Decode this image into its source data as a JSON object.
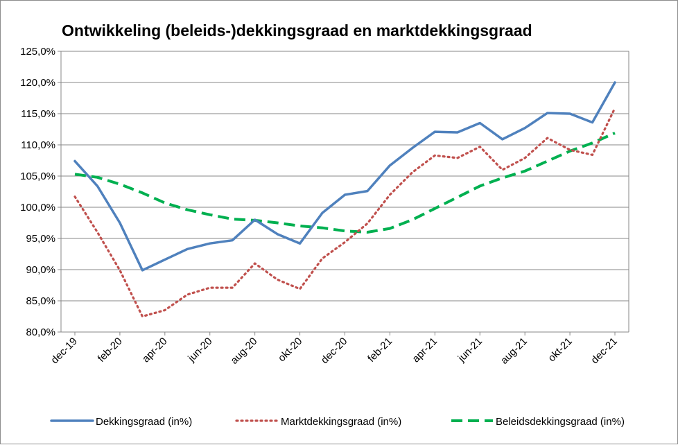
{
  "chart_data": {
    "type": "line",
    "title": "Ontwikkeling (beleids-)dekkingsgraad en marktdekkingsgraad",
    "xlabel": "",
    "ylabel": "",
    "x": [
      "dec-19",
      "jan-20",
      "feb-20",
      "mrt-20",
      "apr-20",
      "mei-20",
      "jun-20",
      "jul-20",
      "aug-20",
      "sep-20",
      "okt-20",
      "nov-20",
      "dec-20",
      "jan-21",
      "feb-21",
      "mrt-21",
      "apr-21",
      "mei-21",
      "jun-21",
      "jul-21",
      "aug-21",
      "sep-21",
      "okt-21",
      "nov-21",
      "dec-21"
    ],
    "tick_labels": [
      "dec-19",
      "feb-20",
      "apr-20",
      "jun-20",
      "aug-20",
      "okt-20",
      "dec-20",
      "feb-21",
      "apr-21",
      "jun-21",
      "aug-21",
      "okt-21",
      "dec-21"
    ],
    "ylim": [
      80,
      125
    ],
    "ytick_labels": [
      "80,0%",
      "85,0%",
      "90,0%",
      "95,0%",
      "100,0%",
      "105,0%",
      "110,0%",
      "115,0%",
      "120,0%",
      "125,0%"
    ],
    "grid": true,
    "legend": "bottom",
    "series": [
      {
        "name": "Dekkingsgraad (in%)",
        "color": "#4f81bd",
        "style": "solid",
        "values": [
          107.4,
          103.4,
          97.5,
          89.9,
          91.6,
          93.3,
          94.2,
          94.7,
          98.0,
          95.7,
          94.2,
          99.1,
          102.0,
          102.6,
          106.7,
          109.5,
          112.1,
          112.0,
          113.5,
          110.9,
          112.7,
          115.1,
          115.0,
          113.6,
          120.0
        ]
      },
      {
        "name": "Marktdekkingsgraad (in%)",
        "color": "#c0504d",
        "style": "dotted",
        "values": [
          101.7,
          96.0,
          89.9,
          82.5,
          83.5,
          86.0,
          87.1,
          87.1,
          91.0,
          88.4,
          86.9,
          91.8,
          94.4,
          97.4,
          102.0,
          105.6,
          108.3,
          107.9,
          109.7,
          106.0,
          107.9,
          111.1,
          109.2,
          108.4,
          115.9
        ]
      },
      {
        "name": "Beleidsdekkingsgraad (in%)",
        "color": "#00b050",
        "style": "dashed",
        "values": [
          105.3,
          104.8,
          103.7,
          102.3,
          100.7,
          99.6,
          98.8,
          98.1,
          97.9,
          97.5,
          97.0,
          96.7,
          96.2,
          96.0,
          96.6,
          98.0,
          99.8,
          101.6,
          103.4,
          104.7,
          105.8,
          107.4,
          109.0,
          110.3,
          111.9
        ]
      }
    ]
  }
}
